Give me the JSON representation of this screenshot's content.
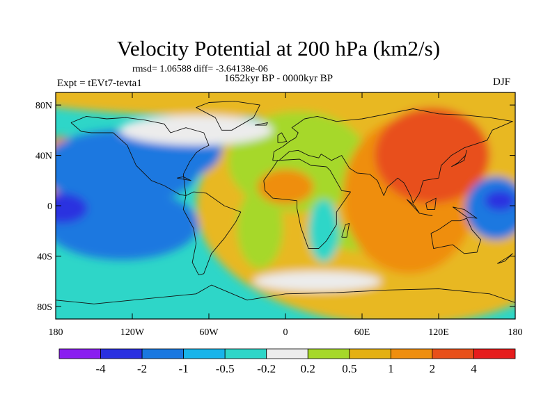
{
  "plot": {
    "title": "Velocity Potential at 200 hPa (km2/s)",
    "rmsd_line": "rmsd= 1.06588 diff= -3.64138e-06",
    "experiment": "Expt = tEVt7-tevta1",
    "period": "1652kyr BP - 0000kyr BP",
    "season": "DJF"
  },
  "map": {
    "projection": "cylindrical-equidistant",
    "lon_range": [
      -180,
      180
    ],
    "lat_range": [
      -90,
      90
    ],
    "lat_ticks": [
      {
        "lat": 80,
        "label": "80N"
      },
      {
        "lat": 40,
        "label": "40N"
      },
      {
        "lat": 0,
        "label": "0"
      },
      {
        "lat": -40,
        "label": "40S"
      },
      {
        "lat": -80,
        "label": "80S"
      }
    ],
    "lon_ticks": [
      {
        "lon": -180,
        "label": "180"
      },
      {
        "lon": -120,
        "label": "120W"
      },
      {
        "lon": -60,
        "label": "60W"
      },
      {
        "lon": 0,
        "label": "0"
      },
      {
        "lon": 60,
        "label": "60E"
      },
      {
        "lon": 120,
        "label": "120E"
      },
      {
        "lon": 180,
        "label": "180"
      }
    ]
  },
  "colorbar": {
    "colors": [
      "#8a1ef0",
      "#2a30e0",
      "#1a78e0",
      "#18b4ea",
      "#2ed6c8",
      "#ececec",
      "#a6d82a",
      "#e4b012",
      "#ef8e0e",
      "#e8501a",
      "#e61c1c"
    ],
    "labels": [
      "-4",
      "-2",
      "-1",
      "-0.5",
      "-0.2",
      "0.2",
      "0.5",
      "1",
      "2",
      "4"
    ]
  },
  "field": {
    "background_color": "#2ed6c8",
    "blobs": [
      {
        "lon": 90,
        "lat": 0,
        "rlon": 160,
        "rlat": 95,
        "color": "#e8b820"
      },
      {
        "lon": 0,
        "lat": 92,
        "rlon": 230,
        "rlat": 22,
        "color": "#e8b820"
      },
      {
        "lon": 10,
        "lat": 35,
        "rlon": 55,
        "rlat": 40,
        "color": "#a6d82a"
      },
      {
        "lon": -20,
        "lat": -18,
        "rlon": 18,
        "rlat": 32,
        "color": "#a6d82a"
      },
      {
        "lon": 72,
        "lat": -25,
        "rlon": 42,
        "rlat": 12,
        "color": "#a6d82a"
      },
      {
        "lon": 97,
        "lat": 8,
        "rlon": 52,
        "rlat": 62,
        "color": "#ef8e0e"
      },
      {
        "lon": 115,
        "lat": 40,
        "rlon": 45,
        "rlat": 38,
        "color": "#e8501a"
      },
      {
        "lon": 0,
        "lat": 15,
        "rlon": 22,
        "rlat": 14,
        "color": "#ef8e0e"
      },
      {
        "lon": -176,
        "lat": 30,
        "rlon": 18,
        "rlat": 25,
        "color": "#ef8e0e"
      },
      {
        "lon": -130,
        "lat": 30,
        "rlon": 62,
        "rlat": 30,
        "color": "#1a78e0"
      },
      {
        "lon": -128,
        "lat": -15,
        "rlon": 60,
        "rlat": 28,
        "color": "#1a78e0"
      },
      {
        "lon": -175,
        "lat": -2,
        "rlon": 20,
        "rlat": 12,
        "color": "#2a30e0"
      },
      {
        "lon": 165,
        "lat": -2,
        "rlon": 24,
        "rlat": 25,
        "color": "#1a78e0"
      },
      {
        "lon": 168,
        "lat": 4,
        "rlon": 12,
        "rlat": 8,
        "color": "#2a30e0"
      },
      {
        "lon": -80,
        "lat": 45,
        "rlon": 30,
        "rlat": 22,
        "color": "#1a78e0"
      },
      {
        "lon": -70,
        "lat": 60,
        "rlon": 60,
        "rlat": 12,
        "color": "#ececec"
      },
      {
        "lon": 25,
        "lat": -60,
        "rlon": 50,
        "rlat": 8,
        "color": "#ececec"
      },
      {
        "lon": 30,
        "lat": -20,
        "rlon": 12,
        "rlat": 25,
        "color": "#2ed6c8"
      }
    ]
  },
  "coastlines": [
    [
      [
        -168,
        66
      ],
      [
        -160,
        59
      ],
      [
        -152,
        58
      ],
      [
        -135,
        58
      ],
      [
        -124,
        48
      ],
      [
        -117,
        32
      ],
      [
        -105,
        20
      ],
      [
        -95,
        16
      ],
      [
        -83,
        9
      ],
      [
        -78,
        8
      ],
      [
        -80,
        25
      ],
      [
        -75,
        35
      ],
      [
        -70,
        42
      ],
      [
        -66,
        45
      ],
      [
        -60,
        48
      ],
      [
        -64,
        58
      ],
      [
        -78,
        62
      ],
      [
        -90,
        58
      ],
      [
        -95,
        65
      ],
      [
        -110,
        68
      ],
      [
        -125,
        70
      ],
      [
        -140,
        69
      ],
      [
        -156,
        71
      ],
      [
        -168,
        66
      ]
    ],
    [
      [
        -78,
        8
      ],
      [
        -80,
        -3
      ],
      [
        -72,
        -18
      ],
      [
        -70,
        -30
      ],
      [
        -73,
        -45
      ],
      [
        -68,
        -55
      ],
      [
        -64,
        -54
      ],
      [
        -58,
        -38
      ],
      [
        -48,
        -26
      ],
      [
        -39,
        -13
      ],
      [
        -35,
        -5
      ],
      [
        -48,
        0
      ],
      [
        -62,
        10
      ],
      [
        -72,
        11
      ],
      [
        -78,
        8
      ]
    ],
    [
      [
        -50,
        60
      ],
      [
        -42,
        60
      ],
      [
        -25,
        70
      ],
      [
        -20,
        80
      ],
      [
        -40,
        83
      ],
      [
        -60,
        82
      ],
      [
        -70,
        78
      ],
      [
        -55,
        70
      ],
      [
        -50,
        60
      ]
    ],
    [
      [
        -10,
        36
      ],
      [
        -9,
        43
      ],
      [
        -2,
        47
      ],
      [
        3,
        51
      ],
      [
        8,
        54
      ],
      [
        10,
        58
      ],
      [
        5,
        62
      ],
      [
        15,
        69
      ],
      [
        25,
        71
      ],
      [
        40,
        67
      ],
      [
        60,
        69
      ],
      [
        80,
        73
      ],
      [
        100,
        77
      ],
      [
        120,
        73
      ],
      [
        140,
        72
      ],
      [
        160,
        70
      ],
      [
        178,
        67
      ],
      [
        162,
        60
      ],
      [
        158,
        52
      ],
      [
        140,
        46
      ],
      [
        130,
        40
      ],
      [
        122,
        32
      ],
      [
        120,
        22
      ],
      [
        108,
        20
      ],
      [
        105,
        10
      ],
      [
        100,
        2
      ],
      [
        98,
        8
      ],
      [
        93,
        18
      ],
      [
        88,
        22
      ],
      [
        80,
        15
      ],
      [
        77,
        8
      ],
      [
        72,
        20
      ],
      [
        66,
        25
      ],
      [
        56,
        26
      ],
      [
        50,
        30
      ],
      [
        44,
        40
      ],
      [
        36,
        36
      ],
      [
        28,
        41
      ],
      [
        26,
        38
      ],
      [
        18,
        40
      ],
      [
        10,
        44
      ],
      [
        3,
        43
      ],
      [
        -5,
        36
      ],
      [
        -10,
        36
      ]
    ],
    [
      [
        -17,
        20
      ],
      [
        -16,
        12
      ],
      [
        -10,
        6
      ],
      [
        0,
        5
      ],
      [
        9,
        4
      ],
      [
        9,
        -2
      ],
      [
        12,
        -17
      ],
      [
        18,
        -34
      ],
      [
        26,
        -34
      ],
      [
        32,
        -28
      ],
      [
        40,
        -15
      ],
      [
        40,
        -5
      ],
      [
        51,
        11
      ],
      [
        44,
        12
      ],
      [
        35,
        28
      ],
      [
        32,
        31
      ],
      [
        20,
        32
      ],
      [
        11,
        37
      ],
      [
        -6,
        36
      ],
      [
        -10,
        30
      ],
      [
        -17,
        20
      ]
    ],
    [
      [
        114,
        -22
      ],
      [
        120,
        -19
      ],
      [
        130,
        -12
      ],
      [
        137,
        -12
      ],
      [
        142,
        -10
      ],
      [
        146,
        -19
      ],
      [
        153,
        -27
      ],
      [
        150,
        -37
      ],
      [
        140,
        -38
      ],
      [
        131,
        -31
      ],
      [
        116,
        -34
      ],
      [
        114,
        -22
      ]
    ],
    [
      [
        -180,
        -75
      ],
      [
        -150,
        -78
      ],
      [
        -100,
        -73
      ],
      [
        -70,
        -70
      ],
      [
        -58,
        -63
      ],
      [
        -30,
        -75
      ],
      [
        0,
        -70
      ],
      [
        40,
        -69
      ],
      [
        80,
        -67
      ],
      [
        120,
        -66
      ],
      [
        160,
        -70
      ],
      [
        180,
        -77
      ]
    ],
    [
      [
        44,
        -25
      ],
      [
        47,
        -15
      ],
      [
        50,
        -14
      ],
      [
        48,
        -25
      ],
      [
        44,
        -25
      ]
    ],
    [
      [
        95,
        5
      ],
      [
        105,
        -6
      ],
      [
        101,
        0
      ],
      [
        95,
        5
      ]
    ],
    [
      [
        105,
        -6
      ],
      [
        115,
        -8
      ],
      [
        110,
        -7
      ],
      [
        105,
        -6
      ]
    ],
    [
      [
        110,
        2
      ],
      [
        118,
        6
      ],
      [
        117,
        -3
      ],
      [
        111,
        -3
      ],
      [
        110,
        2
      ]
    ],
    [
      [
        131,
        -1
      ],
      [
        140,
        -3
      ],
      [
        150,
        -10
      ],
      [
        142,
        -9
      ],
      [
        131,
        -1
      ]
    ],
    [
      [
        130,
        31
      ],
      [
        135,
        34
      ],
      [
        141,
        40
      ],
      [
        142,
        44
      ],
      [
        140,
        36
      ],
      [
        130,
        31
      ]
    ],
    [
      [
        -6,
        50
      ],
      [
        1,
        51
      ],
      [
        -3,
        58
      ],
      [
        -6,
        56
      ],
      [
        -6,
        50
      ]
    ],
    [
      [
        166,
        -46
      ],
      [
        174,
        -41
      ],
      [
        178,
        -38
      ],
      [
        172,
        -44
      ],
      [
        166,
        -46
      ]
    ],
    [
      [
        -24,
        64
      ],
      [
        -14,
        66
      ],
      [
        -15,
        64
      ],
      [
        -24,
        64
      ]
    ],
    [
      [
        -85,
        22
      ],
      [
        -74,
        20
      ],
      [
        -80,
        23
      ],
      [
        -85,
        22
      ]
    ]
  ]
}
